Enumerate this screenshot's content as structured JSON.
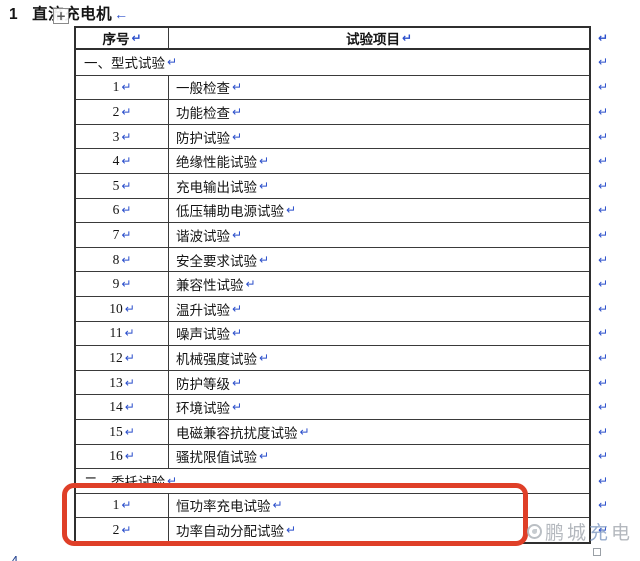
{
  "title": {
    "number": "1",
    "text": "直流充电机",
    "pilcrow": "←"
  },
  "marks": {
    "cell": "↵",
    "row_end": "↵"
  },
  "move_handle_glyph": "+",
  "table": {
    "columns": [
      "序号",
      "试验项目"
    ],
    "rows": [
      {
        "kind": "section",
        "label": "一、型式试验"
      },
      {
        "kind": "item",
        "num": "1",
        "label": "一般检查"
      },
      {
        "kind": "item",
        "num": "2",
        "label": "功能检查"
      },
      {
        "kind": "item",
        "num": "3",
        "label": "防护试验"
      },
      {
        "kind": "item",
        "num": "4",
        "label": "绝缘性能试验"
      },
      {
        "kind": "item",
        "num": "5",
        "label": "充电输出试验"
      },
      {
        "kind": "item",
        "num": "6",
        "label": "低压辅助电源试验"
      },
      {
        "kind": "item",
        "num": "7",
        "label": "谐波试验"
      },
      {
        "kind": "item",
        "num": "8",
        "label": "安全要求试验"
      },
      {
        "kind": "item",
        "num": "9",
        "label": "兼容性试验"
      },
      {
        "kind": "item",
        "num": "10",
        "label": "温升试验"
      },
      {
        "kind": "item",
        "num": "11",
        "label": "噪声试验"
      },
      {
        "kind": "item",
        "num": "12",
        "label": "机械强度试验"
      },
      {
        "kind": "item",
        "num": "13",
        "label": "防护等级"
      },
      {
        "kind": "item",
        "num": "14",
        "label": "环境试验"
      },
      {
        "kind": "item",
        "num": "15",
        "label": "电磁兼容抗扰度试验"
      },
      {
        "kind": "item",
        "num": "16",
        "label": "骚扰限值试验"
      },
      {
        "kind": "section",
        "label": "二、委托试验"
      },
      {
        "kind": "item",
        "num": "1",
        "label": "恒功率充电试验"
      },
      {
        "kind": "item",
        "num": "2",
        "label": "功率自动分配试验"
      }
    ]
  },
  "watermark": {
    "prefix": "鹏城",
    "accent": "充",
    "suffix": "电"
  },
  "clipped_next_line": "4",
  "colors": {
    "highlight_red": "#df3f28",
    "formatting_mark_blue": "#2a4ecb",
    "table_border": "#2f2f2f",
    "watermark_gray": "#aeb3b9"
  }
}
